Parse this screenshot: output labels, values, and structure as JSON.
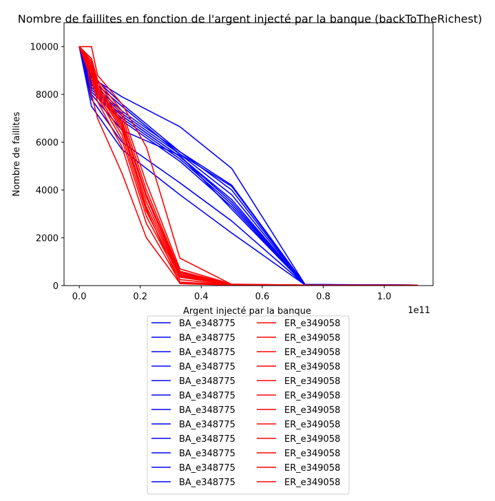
{
  "chart_data": {
    "type": "line",
    "title": "Nombre de faillites en fonction de l'argent injecté par la banque (backToTheRichest)",
    "xlabel": "Argent injecté par la banque",
    "ylabel": "Nombre de faillites",
    "x_offset_text": "1e11",
    "xlim": [
      -0.05,
      1.16
    ],
    "ylim": [
      0,
      11000
    ],
    "x_ticks": [
      0.0,
      0.2,
      0.4,
      0.6,
      0.8,
      1.0
    ],
    "x_tick_labels": [
      "0.0",
      "0.2",
      "0.4",
      "0.6",
      "0.8",
      "1.0"
    ],
    "y_ticks": [
      0,
      2000,
      4000,
      6000,
      8000,
      10000
    ],
    "y_tick_labels": [
      "0",
      "2000",
      "4000",
      "6000",
      "8000",
      "10000"
    ],
    "grid": false,
    "legend_position": "below",
    "legend_columns": 2,
    "colors": {
      "BA": "#0000ff",
      "ER": "#ff0000"
    },
    "series": [
      {
        "name": "BA_e348775",
        "color": "#0000ff",
        "x": [
          0,
          0.04,
          0.14,
          0.33,
          0.5,
          0.74,
          1.11
        ],
        "y": [
          10000,
          8700,
          7900,
          6650,
          4900,
          50,
          20
        ]
      },
      {
        "name": "BA_e348775",
        "color": "#0000ff",
        "x": [
          0,
          0.04,
          0.14,
          0.33,
          0.5,
          0.74,
          1.11
        ],
        "y": [
          10000,
          8500,
          7300,
          5600,
          4200,
          40,
          20
        ]
      },
      {
        "name": "BA_e348775",
        "color": "#0000ff",
        "x": [
          0,
          0.04,
          0.14,
          0.33,
          0.5,
          0.74,
          1.11
        ],
        "y": [
          10000,
          8400,
          7200,
          5500,
          4150,
          40,
          20
        ]
      },
      {
        "name": "BA_e348775",
        "color": "#0000ff",
        "x": [
          0,
          0.04,
          0.14,
          0.33,
          0.5,
          0.74,
          1.11
        ],
        "y": [
          10000,
          8300,
          7100,
          5400,
          3600,
          30,
          20
        ]
      },
      {
        "name": "BA_e348775",
        "color": "#0000ff",
        "x": [
          0,
          0.04,
          0.14,
          0.33,
          0.5,
          0.74,
          1.11
        ],
        "y": [
          10000,
          8200,
          7000,
          5300,
          3400,
          30,
          20
        ]
      },
      {
        "name": "BA_e348775",
        "color": "#0000ff",
        "x": [
          0,
          0.04,
          0.14,
          0.33,
          0.5,
          0.74,
          1.11
        ],
        "y": [
          10000,
          8100,
          6900,
          5200,
          3300,
          30,
          20
        ]
      },
      {
        "name": "BA_e348775",
        "color": "#0000ff",
        "x": [
          0,
          0.04,
          0.14,
          0.33,
          0.5,
          0.74,
          1.11
        ],
        "y": [
          10000,
          8000,
          6500,
          5450,
          3200,
          30,
          20
        ]
      },
      {
        "name": "BA_e348775",
        "color": "#0000ff",
        "x": [
          0,
          0.04,
          0.14,
          0.33,
          0.5,
          0.74,
          1.11
        ],
        "y": [
          10000,
          8600,
          7500,
          5500,
          3800,
          40,
          20
        ]
      },
      {
        "name": "BA_e348775",
        "color": "#0000ff",
        "x": [
          0,
          0.04,
          0.14,
          0.33,
          0.5,
          0.74,
          1.11
        ],
        "y": [
          10000,
          7800,
          6000,
          4300,
          2700,
          30,
          20
        ]
      },
      {
        "name": "BA_e348775",
        "color": "#0000ff",
        "x": [
          0,
          0.04,
          0.14,
          0.33,
          0.5,
          0.74,
          1.11
        ],
        "y": [
          10000,
          7500,
          5700,
          3800,
          2200,
          30,
          20
        ]
      },
      {
        "name": "BA_e348775",
        "color": "#0000ff",
        "x": [
          0,
          0.04,
          0.14,
          0.33,
          0.5,
          0.74,
          1.11
        ],
        "y": [
          10000,
          8300,
          7100,
          5400,
          3500,
          30,
          20
        ]
      },
      {
        "name": "BA_e348775",
        "color": "#0000ff",
        "x": [
          0,
          0.04,
          0.14,
          0.33,
          0.5,
          0.74,
          1.11
        ],
        "y": [
          10000,
          8800,
          7600,
          5600,
          4000,
          40,
          20
        ]
      },
      {
        "name": "ER_e349058",
        "color": "#ff0000",
        "x": [
          0,
          0.04,
          0.06,
          0.14,
          0.22,
          0.33,
          0.5,
          0.74,
          1.11
        ],
        "y": [
          10000,
          10000,
          8800,
          7600,
          5800,
          1150,
          50,
          20,
          10
        ]
      },
      {
        "name": "ER_e349058",
        "color": "#ff0000",
        "x": [
          0,
          0.04,
          0.06,
          0.14,
          0.22,
          0.33,
          0.5,
          0.74,
          1.11
        ],
        "y": [
          10000,
          9500,
          8600,
          7300,
          4300,
          700,
          60,
          20,
          10
        ]
      },
      {
        "name": "ER_e349058",
        "color": "#ff0000",
        "x": [
          0,
          0.04,
          0.06,
          0.14,
          0.22,
          0.33,
          0.5,
          0.74,
          1.11
        ],
        "y": [
          10000,
          9400,
          8500,
          7100,
          4000,
          600,
          50,
          20,
          10
        ]
      },
      {
        "name": "ER_e349058",
        "color": "#ff0000",
        "x": [
          0,
          0.04,
          0.06,
          0.14,
          0.22,
          0.33,
          0.5,
          0.74,
          1.11
        ],
        "y": [
          10000,
          9300,
          8400,
          6900,
          3800,
          550,
          40,
          20,
          10
        ]
      },
      {
        "name": "ER_e349058",
        "color": "#ff0000",
        "x": [
          0,
          0.04,
          0.06,
          0.14,
          0.22,
          0.33,
          0.5,
          0.74,
          1.11
        ],
        "y": [
          10000,
          9200,
          8300,
          6800,
          3700,
          500,
          40,
          20,
          10
        ]
      },
      {
        "name": "ER_e349058",
        "color": "#ff0000",
        "x": [
          0,
          0.04,
          0.06,
          0.14,
          0.22,
          0.33,
          0.5,
          0.74,
          1.11
        ],
        "y": [
          10000,
          9100,
          8200,
          6600,
          3500,
          450,
          30,
          20,
          10
        ]
      },
      {
        "name": "ER_e349058",
        "color": "#ff0000",
        "x": [
          0,
          0.04,
          0.06,
          0.14,
          0.22,
          0.33,
          0.5,
          0.74,
          1.11
        ],
        "y": [
          10000,
          9000,
          8100,
          6500,
          3300,
          400,
          30,
          20,
          10
        ]
      },
      {
        "name": "ER_e349058",
        "color": "#ff0000",
        "x": [
          0,
          0.04,
          0.06,
          0.14,
          0.22,
          0.33,
          0.5,
          0.74,
          1.11
        ],
        "y": [
          10000,
          8900,
          8000,
          6300,
          3100,
          350,
          30,
          20,
          10
        ]
      },
      {
        "name": "ER_e349058",
        "color": "#ff0000",
        "x": [
          0,
          0.04,
          0.06,
          0.14,
          0.22,
          0.33,
          0.5,
          0.74,
          1.11
        ],
        "y": [
          10000,
          8800,
          7900,
          6100,
          2900,
          250,
          20,
          20,
          10
        ]
      },
      {
        "name": "ER_e349058",
        "color": "#ff0000",
        "x": [
          0,
          0.04,
          0.06,
          0.14,
          0.22,
          0.33,
          0.5,
          0.74,
          1.11
        ],
        "y": [
          10000,
          8600,
          7700,
          5800,
          2600,
          150,
          20,
          20,
          10
        ]
      },
      {
        "name": "ER_e349058",
        "color": "#ff0000",
        "x": [
          0,
          0.02,
          0.04,
          0.06,
          0.14,
          0.22,
          0.33,
          0.5,
          1.11
        ],
        "y": [
          10000,
          9700,
          8000,
          7000,
          4700,
          2000,
          100,
          20,
          10
        ]
      },
      {
        "name": "ER_e349058",
        "color": "#ff0000",
        "x": [
          0,
          0.04,
          0.06,
          0.14,
          0.22,
          0.33,
          0.5,
          0.74,
          1.11
        ],
        "y": [
          10000,
          9000,
          8300,
          6700,
          3200,
          80,
          20,
          20,
          10
        ]
      }
    ]
  }
}
